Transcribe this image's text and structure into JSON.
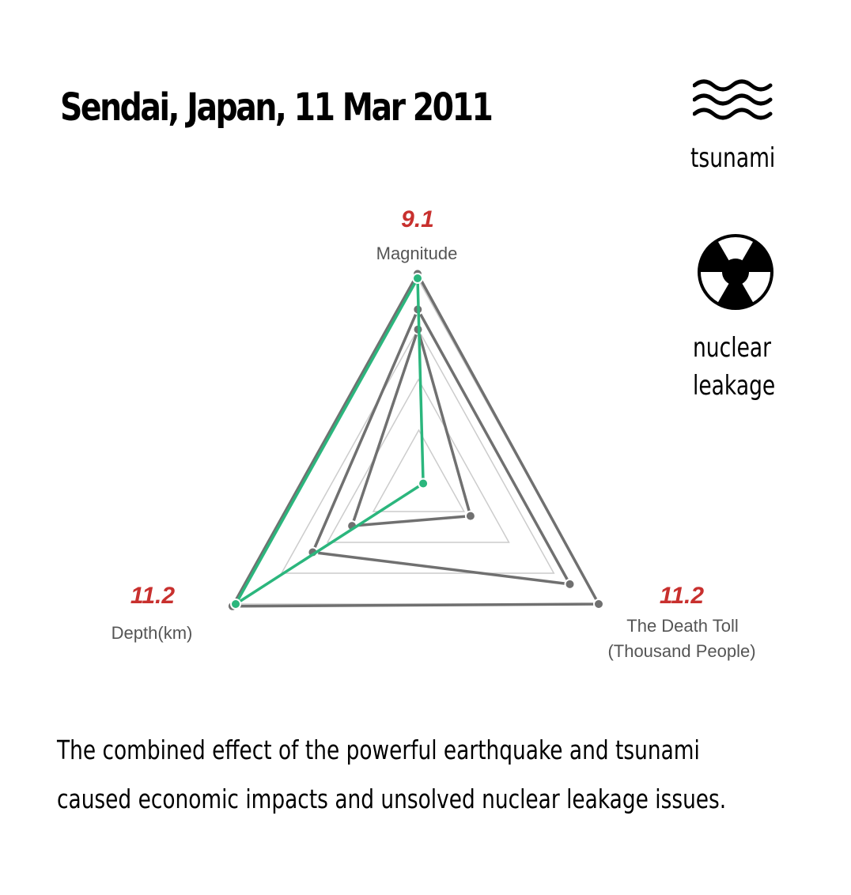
{
  "title": "Sendai, Japan, 11 Mar 2011",
  "icons": {
    "tsunami": {
      "icon": "waves-icon",
      "label": "tsunami"
    },
    "nuclear": {
      "icon": "radiation-icon",
      "label_line1": "nuclear",
      "label_line2": "leakage"
    }
  },
  "caption": {
    "line1": "The combined effect of the powerful earthquake and tsunami",
    "line2": "caused economic impacts and unsolved nuclear leakage issues."
  },
  "colors": {
    "highlight": "#2bb67d",
    "comparison": "#707070",
    "grid": "#cccccc",
    "value_label": "#c8302e",
    "axis_label": "#555555"
  },
  "chart_data": {
    "type": "radar",
    "axes": [
      {
        "key": "magnitude",
        "name": "Magnitude",
        "max_label": "9.1",
        "max": 9.1
      },
      {
        "key": "death_toll",
        "name_line1": "The Death Toll",
        "name_line2": "(Thousand People)",
        "max_label": "11.2",
        "max": 11.2
      },
      {
        "key": "depth",
        "name": "Depth(km)",
        "max_label": "11.2",
        "max": 11.2
      }
    ],
    "grid_levels": [
      0.25,
      0.5,
      0.75,
      1.0
    ],
    "grid_on": true,
    "series": [
      {
        "role": "highlight",
        "values": {
          "magnitude": 9.1,
          "death_toll": 0.25,
          "depth": 11.2
        }
      },
      {
        "role": "comparison",
        "values": {
          "magnitude": 9.3,
          "death_toll": 11.2,
          "depth": 11.4
        }
      },
      {
        "role": "comparison",
        "values": {
          "magnitude": 7.7,
          "death_toll": 9.4,
          "depth": 6.5
        }
      },
      {
        "role": "comparison",
        "values": {
          "magnitude": 6.8,
          "death_toll": 3.2,
          "depth": 4.1
        }
      }
    ]
  }
}
